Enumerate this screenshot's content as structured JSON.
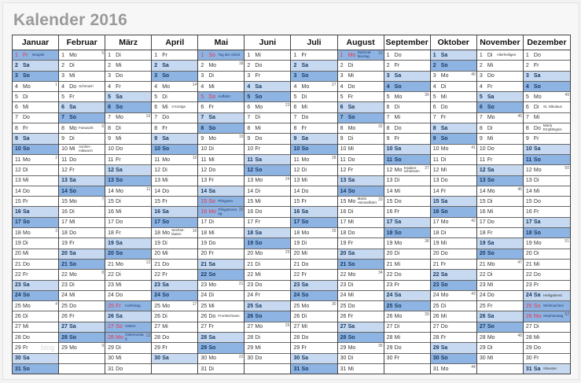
{
  "title": "Kalender 2016",
  "watermark": "blog",
  "colors": {
    "saturday": "#c6d9f0",
    "sunday": "#8eb4e3",
    "holiday_text": "#e8344a",
    "title": "#9a9a9a"
  },
  "weekday_labels": [
    "Mo",
    "Di",
    "Mi",
    "Do",
    "Fr",
    "Sa",
    "So"
  ],
  "months": [
    {
      "name": "Januar",
      "days": 31,
      "first_weekday": "Fr",
      "weeks": {
        "4": 1,
        "11": 2,
        "18": 3,
        "25": 4
      },
      "holidays": {
        "1": {
          "label": "Neujahr",
          "red": true
        }
      }
    },
    {
      "name": "Februar",
      "days": 29,
      "first_weekday": "Mo",
      "weeks": {
        "1": 5,
        "8": 6,
        "15": 7,
        "22": 8,
        "29": 9
      },
      "holidays": {
        "4": {
          "label": "Schmutzi"
        },
        "8": {
          "label": "Fasnacht"
        },
        "10": {
          "label": "Ascher-mittwoch"
        }
      }
    },
    {
      "name": "März",
      "days": 31,
      "first_weekday": "Di",
      "weeks": {
        "7": 10,
        "14": 11,
        "21": 12,
        "28": 13
      },
      "holidays": {
        "25": {
          "label": "Karfreitag",
          "red": true
        },
        "27": {
          "label": "Ostern",
          "red": true
        },
        "28": {
          "label": "Ostermontag",
          "red": true
        }
      }
    },
    {
      "name": "April",
      "days": 30,
      "first_weekday": "Fr",
      "weeks": {
        "4": 14,
        "11": 15,
        "18": 16,
        "25": 17
      },
      "holidays": {
        "6": {
          "label": "3 Könige"
        },
        "18": {
          "label": "Sechse-läuten"
        }
      }
    },
    {
      "name": "Mai",
      "days": 31,
      "first_weekday": "So",
      "weeks": {
        "2": 18,
        "9": 19,
        "16": 20,
        "23": 21,
        "30": 22
      },
      "holidays": {
        "1": {
          "label": "Tag der Arbeit",
          "red": true
        },
        "5": {
          "label": "Auffahrt",
          "red": true
        },
        "15": {
          "label": "Pfingsten",
          "red": true
        },
        "16": {
          "label": "Pfingstmontag",
          "red": true
        },
        "26": {
          "label": "Fronleichnam"
        }
      }
    },
    {
      "name": "Juni",
      "days": 30,
      "first_weekday": "Mi",
      "weeks": {
        "6": 23,
        "13": 24,
        "20": 25,
        "27": 26
      },
      "holidays": {}
    },
    {
      "name": "Juli",
      "days": 31,
      "first_weekday": "Fr",
      "weeks": {
        "4": 27,
        "11": 28,
        "18": 29,
        "25": 30
      },
      "holidays": {}
    },
    {
      "name": "August",
      "days": 31,
      "first_weekday": "Mo",
      "weeks": {
        "1": 31,
        "8": 32,
        "15": 33,
        "22": 34,
        "29": 35
      },
      "holidays": {
        "1": {
          "label": "National-feiertag",
          "red": true
        },
        "15": {
          "label": "Mariä Himmelfahrt"
        }
      }
    },
    {
      "name": "September",
      "days": 30,
      "first_weekday": "Do",
      "weeks": {
        "5": 36,
        "12": 37,
        "19": 38,
        "26": 39
      },
      "holidays": {
        "12": {
          "label": "Knaben-schiessen"
        }
      }
    },
    {
      "name": "Oktober",
      "days": 31,
      "first_weekday": "Sa",
      "weeks": {
        "3": 40,
        "10": 41,
        "17": 42,
        "24": 43,
        "31": 44
      },
      "holidays": {}
    },
    {
      "name": "November",
      "days": 30,
      "first_weekday": "Di",
      "weeks": {
        "7": 45,
        "14": 46,
        "21": 47,
        "28": 48
      },
      "holidays": {
        "1": {
          "label": "Allerheiligen"
        }
      }
    },
    {
      "name": "Dezember",
      "days": 31,
      "first_weekday": "Do",
      "weeks": {
        "5": 49,
        "12": 50,
        "19": 51,
        "26": 52
      },
      "holidays": {
        "6": {
          "label": "St. Nikolaus"
        },
        "8": {
          "label": "Maria Empfängnis"
        },
        "24": {
          "label": "Heiligabend"
        },
        "25": {
          "label": "Weihnachten",
          "red": true
        },
        "26": {
          "label": "Stephanstag",
          "red": true
        },
        "31": {
          "label": "Silvester"
        }
      }
    }
  ]
}
